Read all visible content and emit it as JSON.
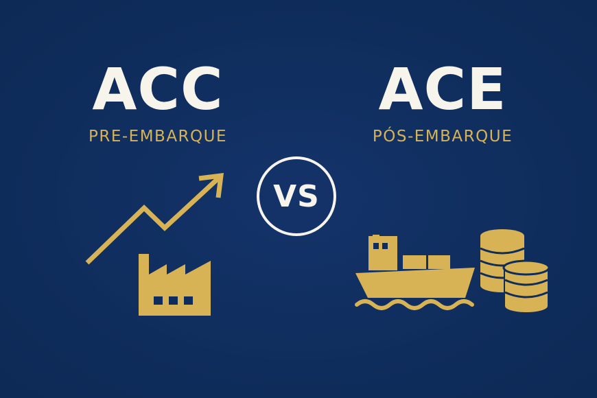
{
  "left": {
    "title": "ACC",
    "subtitle": "PRE-EMBARQUE",
    "icons": [
      "growth-arrow-icon",
      "factory-icon"
    ]
  },
  "center": {
    "vs_label": "VS"
  },
  "right": {
    "title": "ACE",
    "subtitle": "PÓS-EMBARQUE",
    "icons": [
      "cargo-ship-icon",
      "coin-stack-icon"
    ]
  },
  "colors": {
    "background": "#0f2d5c",
    "title_text": "#f7f4ec",
    "accent_gold": "#d8b356"
  }
}
